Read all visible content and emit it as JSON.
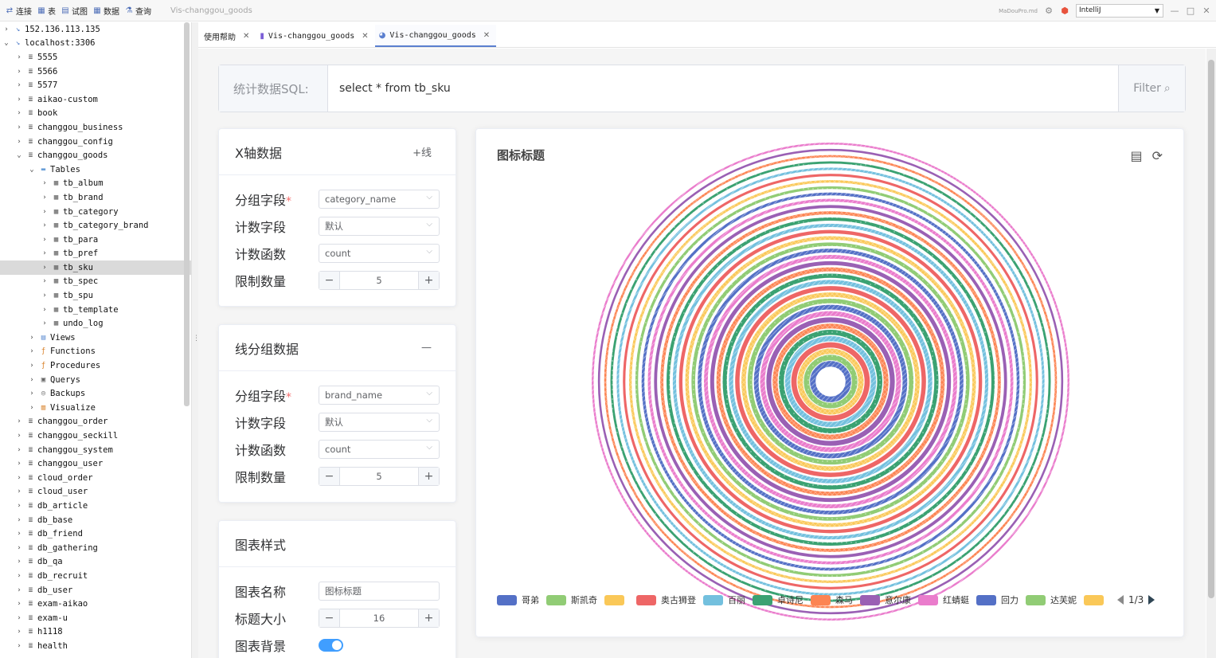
{
  "toolbar": {
    "buttons": [
      {
        "icon": "connect-icon",
        "glyph": "⇄",
        "label": "连接"
      },
      {
        "icon": "table-icon",
        "glyph": "▦",
        "label": "表"
      },
      {
        "icon": "view-icon",
        "glyph": "▤",
        "label": "试图"
      },
      {
        "icon": "data-icon",
        "glyph": "▦",
        "label": "数据"
      },
      {
        "icon": "query-icon",
        "glyph": "⚗",
        "label": "查询"
      }
    ],
    "window_title": "Vis-changgou_goods",
    "brand_mini": "MaDouPro.md",
    "ide_select": "IntelliJ"
  },
  "sidebar": {
    "items": [
      {
        "depth": 0,
        "twisty": "›",
        "icon": "ssh-icon",
        "glyph": "↘",
        "label": "152.136.113.135"
      },
      {
        "depth": 0,
        "twisty": "⌄",
        "icon": "ssh-icon",
        "glyph": "↘",
        "label": "localhost:3306"
      },
      {
        "depth": 1,
        "twisty": "›",
        "icon": "database-icon",
        "glyph": "≣",
        "label": "5555"
      },
      {
        "depth": 1,
        "twisty": "›",
        "icon": "database-icon",
        "glyph": "≣",
        "label": "5566"
      },
      {
        "depth": 1,
        "twisty": "›",
        "icon": "database-icon",
        "glyph": "≣",
        "label": "5577"
      },
      {
        "depth": 1,
        "twisty": "›",
        "icon": "database-icon",
        "glyph": "≣",
        "label": "aikao-custom"
      },
      {
        "depth": 1,
        "twisty": "›",
        "icon": "database-icon",
        "glyph": "≣",
        "label": "book"
      },
      {
        "depth": 1,
        "twisty": "›",
        "icon": "database-icon",
        "glyph": "≣",
        "label": "changgou_business"
      },
      {
        "depth": 1,
        "twisty": "›",
        "icon": "database-icon",
        "glyph": "≣",
        "label": "changgou_config"
      },
      {
        "depth": 1,
        "twisty": "⌄",
        "icon": "database-icon",
        "glyph": "≣",
        "label": "changgou_goods"
      },
      {
        "depth": 2,
        "twisty": "⌄",
        "icon": "folder-icon",
        "glyph": "▬",
        "label": "Tables"
      },
      {
        "depth": 3,
        "twisty": "›",
        "icon": "table-icon",
        "glyph": "▦",
        "label": "tb_album"
      },
      {
        "depth": 3,
        "twisty": "›",
        "icon": "table-icon",
        "glyph": "▦",
        "label": "tb_brand"
      },
      {
        "depth": 3,
        "twisty": "›",
        "icon": "table-icon",
        "glyph": "▦",
        "label": "tb_category"
      },
      {
        "depth": 3,
        "twisty": "›",
        "icon": "table-icon",
        "glyph": "▦",
        "label": "tb_category_brand"
      },
      {
        "depth": 3,
        "twisty": "›",
        "icon": "table-icon",
        "glyph": "▦",
        "label": "tb_para"
      },
      {
        "depth": 3,
        "twisty": "›",
        "icon": "table-icon",
        "glyph": "▦",
        "label": "tb_pref"
      },
      {
        "depth": 3,
        "twisty": "›",
        "icon": "table-icon",
        "glyph": "▦",
        "label": "tb_sku",
        "selected": true
      },
      {
        "depth": 3,
        "twisty": "›",
        "icon": "table-icon",
        "glyph": "▦",
        "label": "tb_spec"
      },
      {
        "depth": 3,
        "twisty": "›",
        "icon": "table-icon",
        "glyph": "▦",
        "label": "tb_spu"
      },
      {
        "depth": 3,
        "twisty": "›",
        "icon": "table-icon",
        "glyph": "▦",
        "label": "tb_template"
      },
      {
        "depth": 3,
        "twisty": "›",
        "icon": "table-icon",
        "glyph": "▦",
        "label": "undo_log"
      },
      {
        "depth": 2,
        "twisty": "›",
        "icon": "views-icon",
        "glyph": "▤",
        "label": "Views"
      },
      {
        "depth": 2,
        "twisty": "›",
        "icon": "functions-icon",
        "glyph": "ƒ",
        "label": "Functions"
      },
      {
        "depth": 2,
        "twisty": "›",
        "icon": "procedures-icon",
        "glyph": "ƒ",
        "label": "Procedures"
      },
      {
        "depth": 2,
        "twisty": "›",
        "icon": "querys-icon",
        "glyph": "▣",
        "label": "Querys"
      },
      {
        "depth": 2,
        "twisty": "›",
        "icon": "backups-icon",
        "glyph": "◎",
        "label": "Backups"
      },
      {
        "depth": 2,
        "twisty": "›",
        "icon": "visualize-icon",
        "glyph": "▥",
        "label": "Visualize"
      },
      {
        "depth": 1,
        "twisty": "›",
        "icon": "database-icon",
        "glyph": "≣",
        "label": "changgou_order"
      },
      {
        "depth": 1,
        "twisty": "›",
        "icon": "database-icon",
        "glyph": "≣",
        "label": "changgou_seckill"
      },
      {
        "depth": 1,
        "twisty": "›",
        "icon": "database-icon",
        "glyph": "≣",
        "label": "changgou_system"
      },
      {
        "depth": 1,
        "twisty": "›",
        "icon": "database-icon",
        "glyph": "≣",
        "label": "changgou_user"
      },
      {
        "depth": 1,
        "twisty": "›",
        "icon": "database-icon",
        "glyph": "≣",
        "label": "cloud_order"
      },
      {
        "depth": 1,
        "twisty": "›",
        "icon": "database-icon",
        "glyph": "≣",
        "label": "cloud_user"
      },
      {
        "depth": 1,
        "twisty": "›",
        "icon": "database-icon",
        "glyph": "≣",
        "label": "db_article"
      },
      {
        "depth": 1,
        "twisty": "›",
        "icon": "database-icon",
        "glyph": "≣",
        "label": "db_base"
      },
      {
        "depth": 1,
        "twisty": "›",
        "icon": "database-icon",
        "glyph": "≣",
        "label": "db_friend"
      },
      {
        "depth": 1,
        "twisty": "›",
        "icon": "database-icon",
        "glyph": "≣",
        "label": "db_gathering"
      },
      {
        "depth": 1,
        "twisty": "›",
        "icon": "database-icon",
        "glyph": "≣",
        "label": "db_qa"
      },
      {
        "depth": 1,
        "twisty": "›",
        "icon": "database-icon",
        "glyph": "≣",
        "label": "db_recruit"
      },
      {
        "depth": 1,
        "twisty": "›",
        "icon": "database-icon",
        "glyph": "≣",
        "label": "db_user"
      },
      {
        "depth": 1,
        "twisty": "›",
        "icon": "database-icon",
        "glyph": "≣",
        "label": "exam-aikao"
      },
      {
        "depth": 1,
        "twisty": "›",
        "icon": "database-icon",
        "glyph": "≣",
        "label": "exam-u"
      },
      {
        "depth": 1,
        "twisty": "›",
        "icon": "database-icon",
        "glyph": "≣",
        "label": "h1118"
      },
      {
        "depth": 1,
        "twisty": "›",
        "icon": "database-icon",
        "glyph": "≣",
        "label": "health"
      }
    ]
  },
  "tabs": [
    {
      "label": "使用帮助",
      "icon": "",
      "active": false
    },
    {
      "label": "Vis-changgou_goods",
      "icon": "bar-chart-icon",
      "active": false
    },
    {
      "label": "Vis-changgou_goods",
      "icon": "pie-chart-icon",
      "active": true
    }
  ],
  "sql": {
    "label": "统计数据SQL:",
    "value": "select * from tb_sku",
    "filter_label": "Filter"
  },
  "x_axis_card": {
    "title": "X轴数据",
    "action": "+线",
    "group_label": "分组字段",
    "group_value": "category_name",
    "count_field_label": "计数字段",
    "count_field_value": "默认",
    "count_func_label": "计数函数",
    "count_func_value": "count",
    "limit_label": "限制数量",
    "limit_value": "5",
    "minus": "−",
    "plus": "+"
  },
  "line_group_card": {
    "title": "线分组数据",
    "action": "—",
    "group_label": "分组字段",
    "group_value": "brand_name",
    "count_field_label": "计数字段",
    "count_field_value": "默认",
    "count_func_label": "计数函数",
    "count_func_value": "count",
    "limit_label": "限制数量",
    "limit_value": "5",
    "minus": "−",
    "plus": "+"
  },
  "style_card": {
    "title": "图表样式",
    "name_label": "图表名称",
    "name_value": "图标标题",
    "size_label": "标题大小",
    "size_value": "16",
    "bg_label": "图表背景",
    "bg_on": true,
    "minus": "−",
    "plus": "+"
  },
  "chart": {
    "title": "图标标题",
    "tools": [
      {
        "icon": "document-icon",
        "glyph": "▤"
      },
      {
        "icon": "refresh-icon",
        "glyph": "⟳"
      }
    ],
    "pager": "1/3",
    "legend": [
      {
        "name": "哥弟",
        "color": "#5470c6"
      },
      {
        "name": "斯凯奇",
        "color": "#91cc75"
      },
      {
        "name": "",
        "color": "#fac858"
      },
      {
        "name": "奥古狮登",
        "color": "#ee6666"
      },
      {
        "name": "百丽",
        "color": "#73c0de"
      },
      {
        "name": "卓诗尼",
        "color": "#3ba272"
      },
      {
        "name": "森马",
        "color": "#fc8452"
      },
      {
        "name": "意尔康",
        "color": "#9a60b4"
      },
      {
        "name": "红蜻蜓",
        "color": "#ea7ccc"
      },
      {
        "name": "回力",
        "color": "#5470c6"
      },
      {
        "name": "达芙妮",
        "color": "#91cc75"
      },
      {
        "name": "",
        "color": "#fac858"
      }
    ]
  },
  "chart_data": {
    "type": "pie",
    "title": "图标标题",
    "ring_colors": [
      "#5470c6",
      "#91cc75",
      "#fac858",
      "#ee6666",
      "#73c0de",
      "#3ba272",
      "#fc8452",
      "#9a60b4",
      "#ea7ccc"
    ],
    "series_count": 36,
    "legend_page": "1/3"
  }
}
